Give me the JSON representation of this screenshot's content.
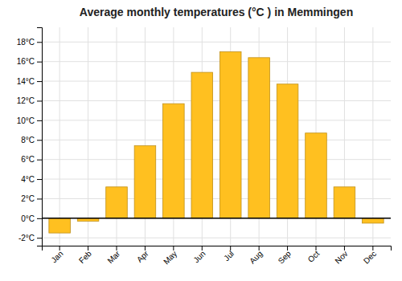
{
  "chart_data": {
    "type": "bar",
    "title": "Average monthly temperatures (°C ) in Memmingen",
    "categories": [
      "Jan",
      "Feb",
      "Mar",
      "Apr",
      "May",
      "Jun",
      "Jul",
      "Aug",
      "Sep",
      "Oct",
      "Nov",
      "Dec"
    ],
    "values": [
      -1.5,
      -0.3,
      3.2,
      7.4,
      11.7,
      14.9,
      17.0,
      16.4,
      13.7,
      8.7,
      3.2,
      -0.5
    ],
    "color": "#FFC020",
    "ylim": [
      -2.8,
      19.5
    ],
    "yticks": [
      {
        "value": -2,
        "label": "-2°C"
      },
      {
        "value": 0,
        "label": "0°C"
      },
      {
        "value": 2,
        "label": "2°C"
      },
      {
        "value": 4,
        "label": "4°C"
      },
      {
        "value": 6,
        "label": "6°C"
      },
      {
        "value": 8,
        "label": "8°C"
      },
      {
        "value": 10,
        "label": "10°C"
      },
      {
        "value": 12,
        "label": "12°C"
      },
      {
        "value": 14,
        "label": "14°C"
      },
      {
        "value": 16,
        "label": "16°C"
      },
      {
        "value": 18,
        "label": "18°C"
      }
    ],
    "grid": true
  }
}
